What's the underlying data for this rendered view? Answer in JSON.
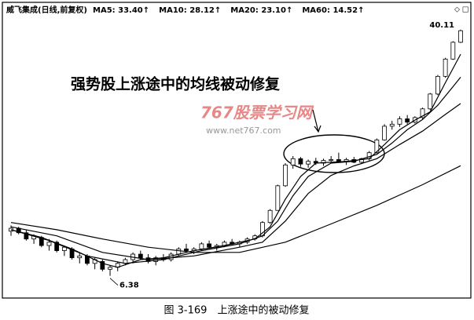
{
  "chart_data": {
    "type": "candlestick",
    "header": "威飞集成(日线,前复权)",
    "annotation": "强势股上涨途中的均线被动修复",
    "watermark": "767股票学习网",
    "watermark_url": "www.net767.com",
    "caption": "图 3-169　上涨途中的被动修复",
    "log_scale": true,
    "ylim": [
      5.5,
      44
    ],
    "up_color": "#ffffff",
    "down_color": "#000000",
    "ohlc": [
      [
        8.9,
        9.3,
        8.6,
        9.1
      ],
      [
        9.1,
        9.2,
        8.7,
        8.8
      ],
      [
        8.8,
        9.0,
        8.3,
        8.4
      ],
      [
        8.4,
        8.7,
        8.1,
        8.6
      ],
      [
        8.5,
        8.6,
        7.9,
        8.0
      ],
      [
        8.0,
        8.4,
        7.7,
        8.2
      ],
      [
        8.2,
        8.3,
        7.6,
        7.7
      ],
      [
        7.7,
        8.0,
        7.4,
        7.9
      ],
      [
        7.8,
        7.9,
        7.2,
        7.3
      ],
      [
        7.3,
        7.6,
        7.0,
        7.4
      ],
      [
        7.4,
        7.5,
        6.9,
        7.0
      ],
      [
        7.0,
        7.3,
        6.7,
        7.2
      ],
      [
        7.1,
        7.2,
        6.6,
        6.7
      ],
      [
        6.7,
        6.9,
        6.38,
        6.8
      ],
      [
        6.8,
        7.1,
        6.6,
        7.0
      ],
      [
        7.0,
        7.3,
        6.9,
        7.2
      ],
      [
        7.2,
        7.6,
        7.0,
        7.5
      ],
      [
        7.5,
        7.7,
        7.2,
        7.3
      ],
      [
        7.3,
        7.5,
        7.0,
        7.1
      ],
      [
        7.1,
        7.4,
        6.9,
        7.3
      ],
      [
        7.3,
        7.5,
        7.1,
        7.2
      ],
      [
        7.2,
        7.6,
        7.1,
        7.5
      ],
      [
        7.5,
        7.9,
        7.4,
        7.8
      ],
      [
        7.8,
        8.1,
        7.6,
        7.7
      ],
      [
        7.7,
        7.9,
        7.5,
        7.8
      ],
      [
        7.8,
        8.2,
        7.7,
        8.1
      ],
      [
        8.1,
        8.3,
        7.8,
        7.9
      ],
      [
        7.9,
        8.1,
        7.7,
        8.0
      ],
      [
        8.0,
        8.3,
        7.9,
        8.2
      ],
      [
        8.2,
        8.4,
        8.0,
        8.1
      ],
      [
        8.1,
        8.3,
        7.9,
        8.2
      ],
      [
        8.2,
        8.5,
        8.1,
        8.4
      ],
      [
        8.4,
        8.7,
        8.3,
        8.6
      ],
      [
        8.6,
        9.6,
        8.5,
        9.5
      ],
      [
        9.5,
        10.5,
        9.4,
        10.4
      ],
      [
        10.4,
        12.6,
        10.4,
        12.5
      ],
      [
        12.5,
        14.8,
        12.4,
        14.6
      ],
      [
        14.6,
        15.6,
        14.2,
        15.3
      ],
      [
        15.3,
        15.5,
        14.4,
        14.7
      ],
      [
        14.7,
        15.2,
        14.3,
        15.0
      ],
      [
        15.0,
        15.4,
        14.6,
        14.8
      ],
      [
        14.8,
        15.3,
        14.5,
        15.1
      ],
      [
        15.1,
        15.6,
        14.9,
        15.2
      ],
      [
        15.2,
        16.0,
        14.9,
        15.0
      ],
      [
        15.0,
        15.4,
        14.6,
        15.2
      ],
      [
        15.2,
        15.5,
        14.8,
        14.9
      ],
      [
        14.9,
        15.4,
        14.7,
        15.3
      ],
      [
        15.3,
        16.2,
        15.1,
        16.0
      ],
      [
        16.0,
        17.8,
        15.9,
        17.6
      ],
      [
        17.6,
        19.8,
        17.5,
        19.5
      ],
      [
        19.5,
        20.3,
        19.0,
        19.8
      ],
      [
        19.8,
        21.0,
        19.4,
        20.6
      ],
      [
        20.6,
        21.2,
        19.8,
        20.1
      ],
      [
        20.1,
        21.0,
        19.9,
        20.8
      ],
      [
        20.8,
        22.4,
        20.6,
        22.2
      ],
      [
        22.2,
        25.0,
        22.0,
        24.8
      ],
      [
        24.8,
        28.6,
        24.6,
        28.3
      ],
      [
        28.3,
        32.5,
        28.0,
        32.2
      ],
      [
        32.2,
        36.8,
        32.0,
        36.5
      ],
      [
        36.5,
        40.11,
        36.3,
        39.8
      ]
    ],
    "series": [
      {
        "name": "MA5: 33.40↑",
        "color": "#000000",
        "x": [
          0,
          4,
          8,
          12,
          14,
          17,
          20,
          24,
          28,
          32,
          34,
          36,
          38,
          40,
          44,
          47,
          49,
          51,
          53,
          55,
          57,
          59
        ],
        "values": [
          9.0,
          8.5,
          7.8,
          7.0,
          6.8,
          7.2,
          7.3,
          7.7,
          8.0,
          8.4,
          9.2,
          11.3,
          13.4,
          14.8,
          15.0,
          15.3,
          17.0,
          19.0,
          20.4,
          21.7,
          27.0,
          33.4
        ]
      },
      {
        "name": "MA10: 28.12↑",
        "color": "#000000",
        "x": [
          0,
          5,
          10,
          15,
          20,
          25,
          30,
          33,
          35,
          37,
          39,
          42,
          45,
          48,
          50,
          52,
          54,
          56,
          58,
          59
        ],
        "values": [
          9.0,
          8.3,
          7.4,
          7.0,
          7.2,
          7.7,
          8.1,
          8.6,
          9.6,
          11.6,
          13.4,
          14.8,
          15.0,
          15.8,
          17.2,
          19.0,
          20.5,
          22.8,
          26.2,
          28.12
        ]
      },
      {
        "name": "MA20: 23.10↑",
        "color": "#000000",
        "x": [
          0,
          6,
          12,
          18,
          24,
          30,
          33,
          36,
          39,
          42,
          45,
          48,
          51,
          54,
          57,
          59
        ],
        "values": [
          9.2,
          8.6,
          7.6,
          7.2,
          7.4,
          7.9,
          8.2,
          9.6,
          11.8,
          13.5,
          14.5,
          15.3,
          17.0,
          18.8,
          21.3,
          23.1
        ]
      },
      {
        "name": "MA60: 14.52↑",
        "color": "#000000",
        "x": [
          0,
          6,
          12,
          18,
          24,
          30,
          36,
          42,
          48,
          54,
          59
        ],
        "values": [
          9.5,
          9.0,
          8.4,
          7.9,
          7.6,
          7.6,
          8.2,
          9.4,
          10.8,
          12.6,
          14.52
        ]
      }
    ]
  }
}
